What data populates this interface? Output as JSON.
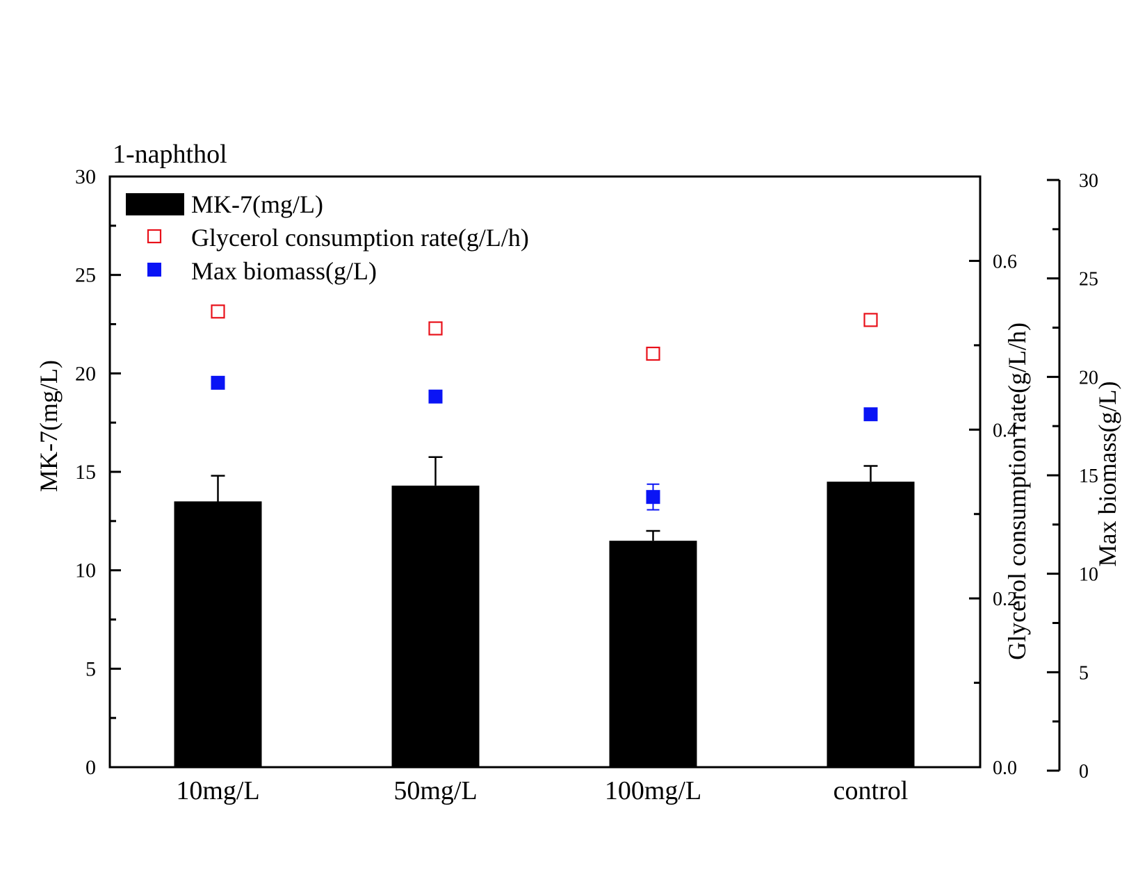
{
  "chart_data": {
    "type": "bar",
    "title": "1-naphthol",
    "categories": [
      "10mg/L",
      "50mg/L",
      "100mg/L",
      "control"
    ],
    "series": [
      {
        "name": "MK-7(mg/L)",
        "axis": "left",
        "mark": "bar",
        "color": "#000000",
        "values": [
          13.5,
          14.3,
          11.5,
          14.5
        ],
        "errors": [
          1.3,
          1.45,
          0.5,
          0.8
        ]
      },
      {
        "name": "Glycerol consumption rate(g/L/h)",
        "axis": "right1",
        "mark": "open-square",
        "color": "#e8111a",
        "values": [
          0.54,
          0.52,
          0.49,
          0.53
        ],
        "errors": [
          0,
          0,
          0,
          0
        ]
      },
      {
        "name": "Max biomass(g/L)",
        "axis": "right2",
        "mark": "filled-square",
        "color": "#0a14f5",
        "values": [
          19.7,
          19.0,
          13.9,
          18.1
        ],
        "errors": [
          0.15,
          0.2,
          0.65,
          0.3
        ]
      }
    ],
    "axes": {
      "left": {
        "label": "MK-7(mg/L)",
        "ylim": [
          0,
          30
        ],
        "ticks": [
          "0",
          "5",
          "10",
          "15",
          "20",
          "25",
          "30"
        ]
      },
      "right1": {
        "label": "Glycerol consumption rate(g/L/h)",
        "ylim": [
          0,
          0.7
        ],
        "ticks": [
          "0.0",
          "0.2",
          "0.4",
          "0.6"
        ]
      },
      "right2": {
        "label": "Max biomass(g/L)",
        "ylim": [
          0,
          30
        ],
        "ticks": [
          "0",
          "5",
          "10",
          "15",
          "20",
          "25",
          "30"
        ]
      }
    },
    "legend": "top-left",
    "grid": false
  }
}
